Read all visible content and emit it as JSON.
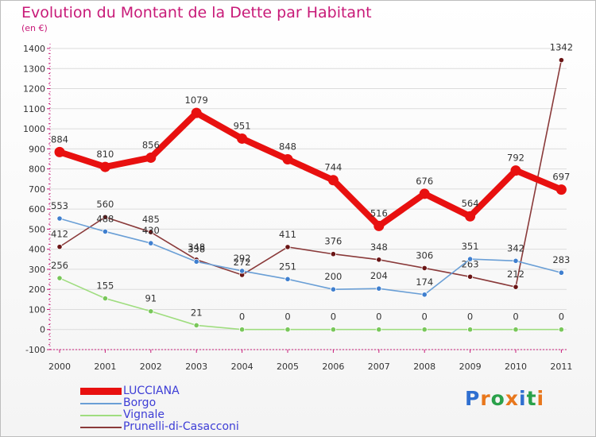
{
  "title": "Evolution du Montant de la Dette par Habitant",
  "unit_label": "(en €)",
  "logo_text": "Proxiti",
  "colors": {
    "title": "#c81a78",
    "axis_text": "#333333",
    "grid": "#dcdcdc",
    "logo": [
      "#2f6fd0",
      "#e8771c",
      "#2aa14a",
      "#e8771c",
      "#2f6fd0",
      "#2aa14a",
      "#e8771c"
    ]
  },
  "chart_data": {
    "type": "line",
    "title": "Evolution du Montant de la Dette par Habitant",
    "ylabel": "(en €)",
    "x": [
      "2000",
      "2001",
      "2002",
      "2003",
      "2004",
      "2005",
      "2006",
      "2007",
      "2008",
      "2009",
      "2010",
      "2011"
    ],
    "yticks": [
      -100,
      0,
      100,
      200,
      300,
      400,
      500,
      600,
      700,
      800,
      900,
      1000,
      1100,
      1200,
      1300,
      1400
    ],
    "ylim": [
      -100,
      1400
    ],
    "grid": "horizontal",
    "legend_position": "bottom-left",
    "series": [
      {
        "name": "LUCCIANA",
        "color": "#e8100f",
        "label_color": "#333333",
        "width": "thick",
        "values": [
          884,
          810,
          856,
          1079,
          951,
          848,
          744,
          516,
          676,
          564,
          792,
          697
        ]
      },
      {
        "name": "Borgo",
        "color": "#6a9fd6",
        "marker_color": "#3f7fcf",
        "label_color": "#333333",
        "width": "thin",
        "values": [
          553,
          488,
          430,
          338,
          292,
          251,
          200,
          204,
          174,
          351,
          342,
          283
        ]
      },
      {
        "name": "Vignale",
        "color": "#9fdd7f",
        "marker_color": "#79c75a",
        "label_color": "#333333",
        "width": "thin",
        "values": [
          256,
          155,
          91,
          21,
          0,
          0,
          0,
          0,
          0,
          0,
          0,
          0
        ]
      },
      {
        "name": "Prunelli-di-Casacconi",
        "color": "#8a3a3a",
        "marker_color": "#6a1515",
        "label_color": "#333333",
        "width": "thin",
        "values": [
          412,
          560,
          485,
          348,
          272,
          411,
          376,
          348,
          306,
          263,
          212,
          1342
        ]
      }
    ],
    "legend": [
      {
        "label": "LUCCIANA",
        "color": "#e8100f",
        "text_color": "#3d3dd6"
      },
      {
        "label": "Borgo",
        "color": "#6a9fd6",
        "text_color": "#3d3dd6"
      },
      {
        "label": "Vignale",
        "color": "#9fdd7f",
        "text_color": "#3d3dd6"
      },
      {
        "label": "Prunelli-di-Casacconi",
        "color": "#8a3a3a",
        "text_color": "#3d3dd6"
      }
    ]
  }
}
